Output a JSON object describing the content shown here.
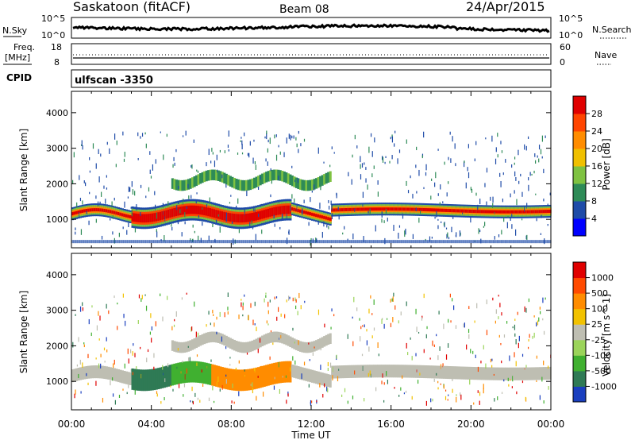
{
  "header": {
    "title": "Saskatoon (fitACF)",
    "beam": "Beam 08",
    "date": "24/Apr/2015"
  },
  "noise_panel": {
    "left_label": "N.Sky",
    "right_label": "N.Search",
    "left_ticks": [
      "10^5",
      "10^0"
    ],
    "right_ticks": [
      "10^5",
      "10^0"
    ]
  },
  "freq_panel": {
    "left_label_1": "Freq.",
    "left_label_2": "[MHz]",
    "right_label": "Nave",
    "left_ticks": [
      "18",
      "8"
    ],
    "right_ticks": [
      "60",
      "0"
    ]
  },
  "cpid": {
    "label": "CPID",
    "value": "ulfscan -3350"
  },
  "colors": {
    "power_scale": [
      "#0000ff",
      "#1e4ba8",
      "#2e8b57",
      "#7fc241",
      "#f0c000",
      "#ff8c00",
      "#ff4500",
      "#e00000"
    ],
    "velocity_scale": [
      "#1a3fbf",
      "#2f7a55",
      "#40b030",
      "#9bd45a",
      "#bebeb2",
      "#f2c200",
      "#ff8c00",
      "#ff4a00",
      "#e00000"
    ],
    "ground_scatter": "#bebeb2"
  },
  "chart_data": [
    {
      "type": "heatmap",
      "title": "",
      "xlabel": "",
      "ylabel": "Slant Range [km]",
      "xlim": [
        "00:00",
        "24:00"
      ],
      "ylim": [
        200,
        4600
      ],
      "yticks": [
        "1000",
        "2000",
        "3000",
        "4000"
      ],
      "colorbar": {
        "label": "Power [dB]",
        "ticks": [
          "4",
          "8",
          "12",
          "16",
          "20",
          "24",
          "28"
        ],
        "range": [
          0,
          32
        ]
      },
      "features": [
        {
          "time_range": [
            "00:00",
            "12:00"
          ],
          "center_km": 1100,
          "description": "strong main band"
        },
        {
          "time_range": [
            "13:00",
            "24:00"
          ],
          "center_km": 1250,
          "description": "main band"
        }
      ]
    },
    {
      "type": "heatmap",
      "title": "",
      "xlabel": "Time UT",
      "ylabel": "Slant Range [km]",
      "xlim": [
        "00:00",
        "24:00"
      ],
      "ylim": [
        200,
        4600
      ],
      "yticks": [
        "1000",
        "2000",
        "3000",
        "4000"
      ],
      "xticks": [
        "00:00",
        "04:00",
        "08:00",
        "12:00",
        "16:00",
        "20:00",
        "00:00"
      ],
      "colorbar": {
        "label": "Velocity [m s^-1]",
        "ticks": [
          "1000",
          "500",
          "100",
          "25",
          "-25",
          "-100",
          "-500",
          "-1000"
        ]
      }
    }
  ]
}
